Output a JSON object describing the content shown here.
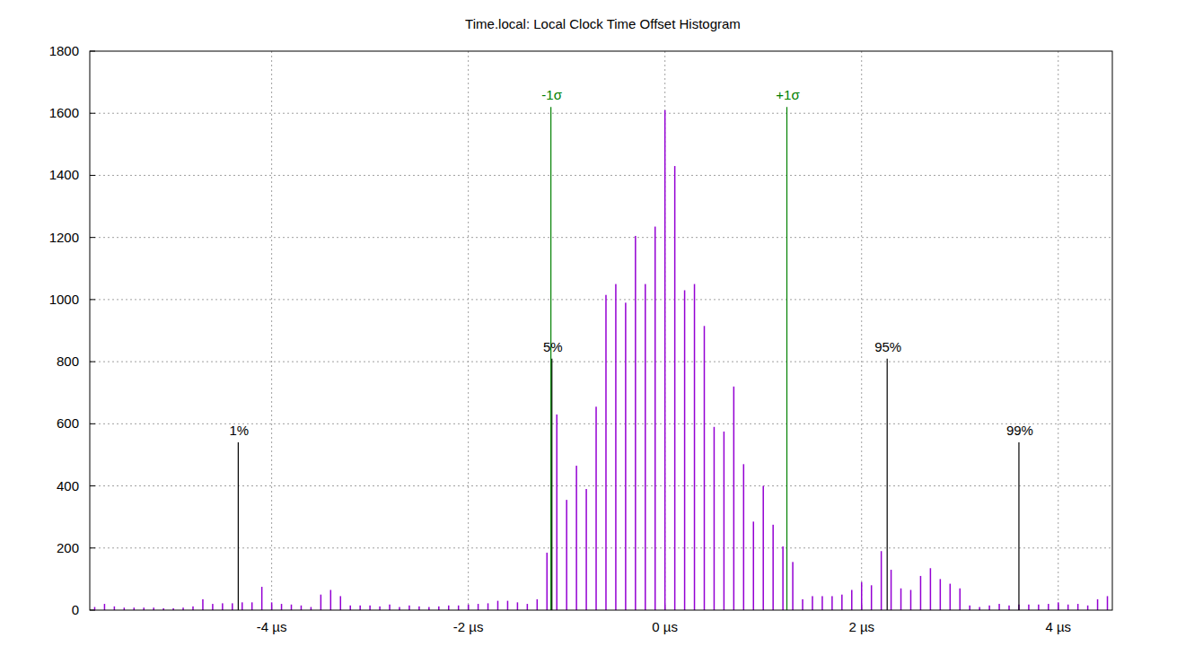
{
  "chart_data": {
    "type": "histogram",
    "title": "Time.local: Local Clock Time Offset Histogram",
    "color": "#9400d3",
    "grid": true,
    "xlim": [
      -5.85,
      4.55
    ],
    "ylim": [
      0,
      1800
    ],
    "xticks": [
      {
        "value": -4,
        "label": "-4 µs"
      },
      {
        "value": -2,
        "label": "-2 µs"
      },
      {
        "value": 0,
        "label": "0 µs"
      },
      {
        "value": 2,
        "label": "2 µs"
      },
      {
        "value": 4,
        "label": "4 µs"
      }
    ],
    "yticks": [
      0,
      200,
      400,
      600,
      800,
      1000,
      1200,
      1400,
      1600,
      1800
    ],
    "bins": [
      -5.85,
      -5.75,
      -5.65,
      -5.55,
      -5.45,
      -5.35,
      -5.25,
      -5.15,
      -5.05,
      -4.95,
      -4.85,
      -4.75,
      -4.65,
      -4.55,
      -4.45,
      -4.35,
      -4.25,
      -4.15,
      -4.05,
      -3.95,
      -3.85,
      -3.75,
      -3.65,
      -3.55,
      -3.45,
      -3.35,
      -3.25,
      -3.15,
      -3.05,
      -2.95,
      -2.85,
      -2.75,
      -2.65,
      -2.55,
      -2.45,
      -2.35,
      -2.25,
      -2.15,
      -2.05,
      -1.95,
      -1.85,
      -1.75,
      -1.65,
      -1.55,
      -1.45,
      -1.35,
      -1.25,
      -1.15,
      -1.05,
      -0.95,
      -0.85,
      -0.75,
      -0.65,
      -0.55,
      -0.45,
      -0.35,
      -0.25,
      -0.15,
      -0.05,
      0.05,
      0.15,
      0.25,
      0.35,
      0.45,
      0.55,
      0.65,
      0.75,
      0.85,
      0.95,
      1.05,
      1.15,
      1.25,
      1.35,
      1.45,
      1.55,
      1.65,
      1.75,
      1.85,
      1.95,
      2.05,
      2.15,
      2.25,
      2.35,
      2.45,
      2.55,
      2.65,
      2.75,
      2.85,
      2.95,
      3.05,
      3.15,
      3.25,
      3.35,
      3.45,
      3.55,
      3.65,
      3.75,
      3.85,
      3.95,
      4.05,
      4.15,
      4.25,
      4.35,
      4.45,
      4.55
    ],
    "values": [
      10,
      20,
      12,
      8,
      8,
      8,
      8,
      6,
      6,
      8,
      12,
      35,
      20,
      22,
      22,
      25,
      25,
      75,
      25,
      20,
      18,
      15,
      10,
      50,
      65,
      45,
      15,
      15,
      15,
      12,
      18,
      10,
      15,
      12,
      10,
      12,
      15,
      15,
      18,
      20,
      22,
      30,
      30,
      25,
      20,
      35,
      185,
      630,
      355,
      465,
      390,
      655,
      1015,
      1050,
      990,
      1205,
      1050,
      1235,
      1610,
      1430,
      1030,
      1050,
      915,
      590,
      575,
      720,
      470,
      285,
      400,
      275,
      205,
      155,
      35,
      45,
      45,
      45,
      50,
      65,
      90,
      80,
      190,
      130,
      70,
      65,
      110,
      135,
      100,
      85,
      70,
      15,
      10,
      15,
      20,
      15,
      18,
      18,
      18,
      20,
      25,
      18,
      20,
      15,
      35,
      45
    ],
    "markers": [
      {
        "label": "1%",
        "x": -4.34,
        "y": 540,
        "color": "#000000"
      },
      {
        "label": "5%",
        "x": -1.15,
        "y": 810,
        "color": "#000000"
      },
      {
        "label": "-1σ",
        "x": -1.16,
        "y": 1620,
        "color": "#008000"
      },
      {
        "label": "+1σ",
        "x": 1.24,
        "y": 1620,
        "color": "#008000"
      },
      {
        "label": "95%",
        "x": 2.26,
        "y": 810,
        "color": "#000000"
      },
      {
        "label": "99%",
        "x": 3.6,
        "y": 540,
        "color": "#000000"
      }
    ]
  }
}
